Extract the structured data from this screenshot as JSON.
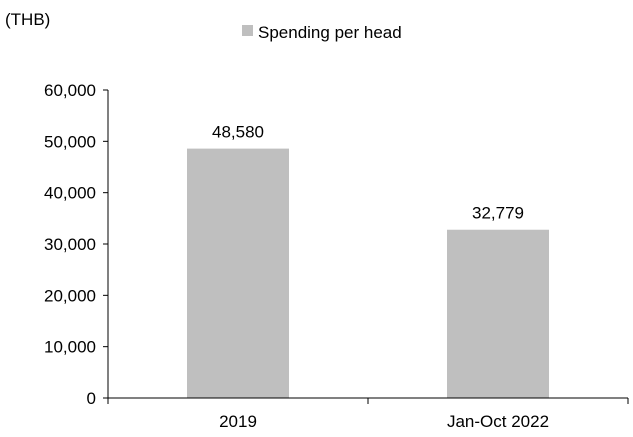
{
  "chart_data": {
    "type": "bar",
    "unit_label": "(THB)",
    "title": "",
    "xlabel": "",
    "ylabel": "",
    "categories": [
      "2019",
      "Jan-Oct 2022"
    ],
    "series": [
      {
        "name": "Spending per head",
        "values": [
          48580,
          32779
        ],
        "data_labels": [
          "48,580",
          "32,779"
        ]
      }
    ],
    "ylim": [
      0,
      60000
    ],
    "yticks": [
      0,
      10000,
      20000,
      30000,
      40000,
      50000,
      60000
    ],
    "ytick_labels": [
      "0",
      "10,000",
      "20,000",
      "30,000",
      "40,000",
      "50,000",
      "60,000"
    ],
    "grid": false,
    "legend_position": "top-center",
    "colors": {
      "bar": "#bfbfbf",
      "axis": "#000000",
      "text": "#000000"
    }
  }
}
